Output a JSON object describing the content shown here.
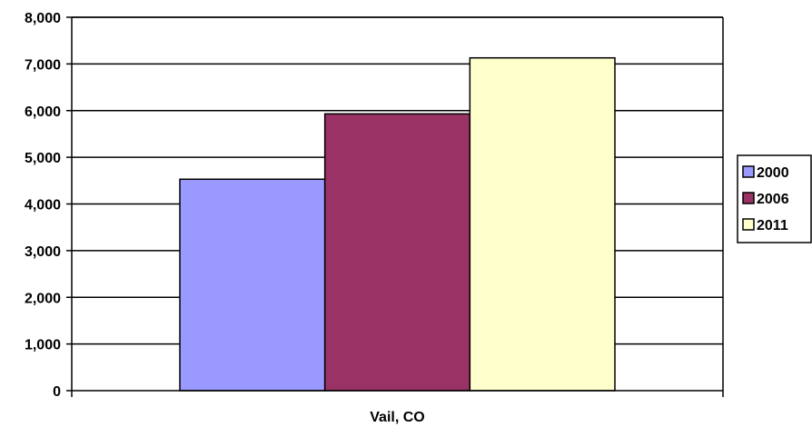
{
  "chart_data": {
    "type": "bar",
    "title": "",
    "xlabel": "",
    "ylabel": "",
    "categories": [
      "Vail, CO"
    ],
    "series": [
      {
        "name": "2000",
        "values": [
          4530
        ],
        "color": "#9999ff"
      },
      {
        "name": "2006",
        "values": [
          5930
        ],
        "color": "#993366"
      },
      {
        "name": "2011",
        "values": [
          7130
        ],
        "color": "#ffffcc"
      }
    ],
    "ylim": [
      0,
      8000
    ],
    "yticks": [
      0,
      1000,
      2000,
      3000,
      4000,
      5000,
      6000,
      7000,
      8000
    ],
    "ytick_labels": [
      "0",
      "1,000",
      "2,000",
      "3,000",
      "4,000",
      "5,000",
      "6,000",
      "7,000",
      "8,000"
    ],
    "grid": true,
    "legend_position": "right"
  }
}
